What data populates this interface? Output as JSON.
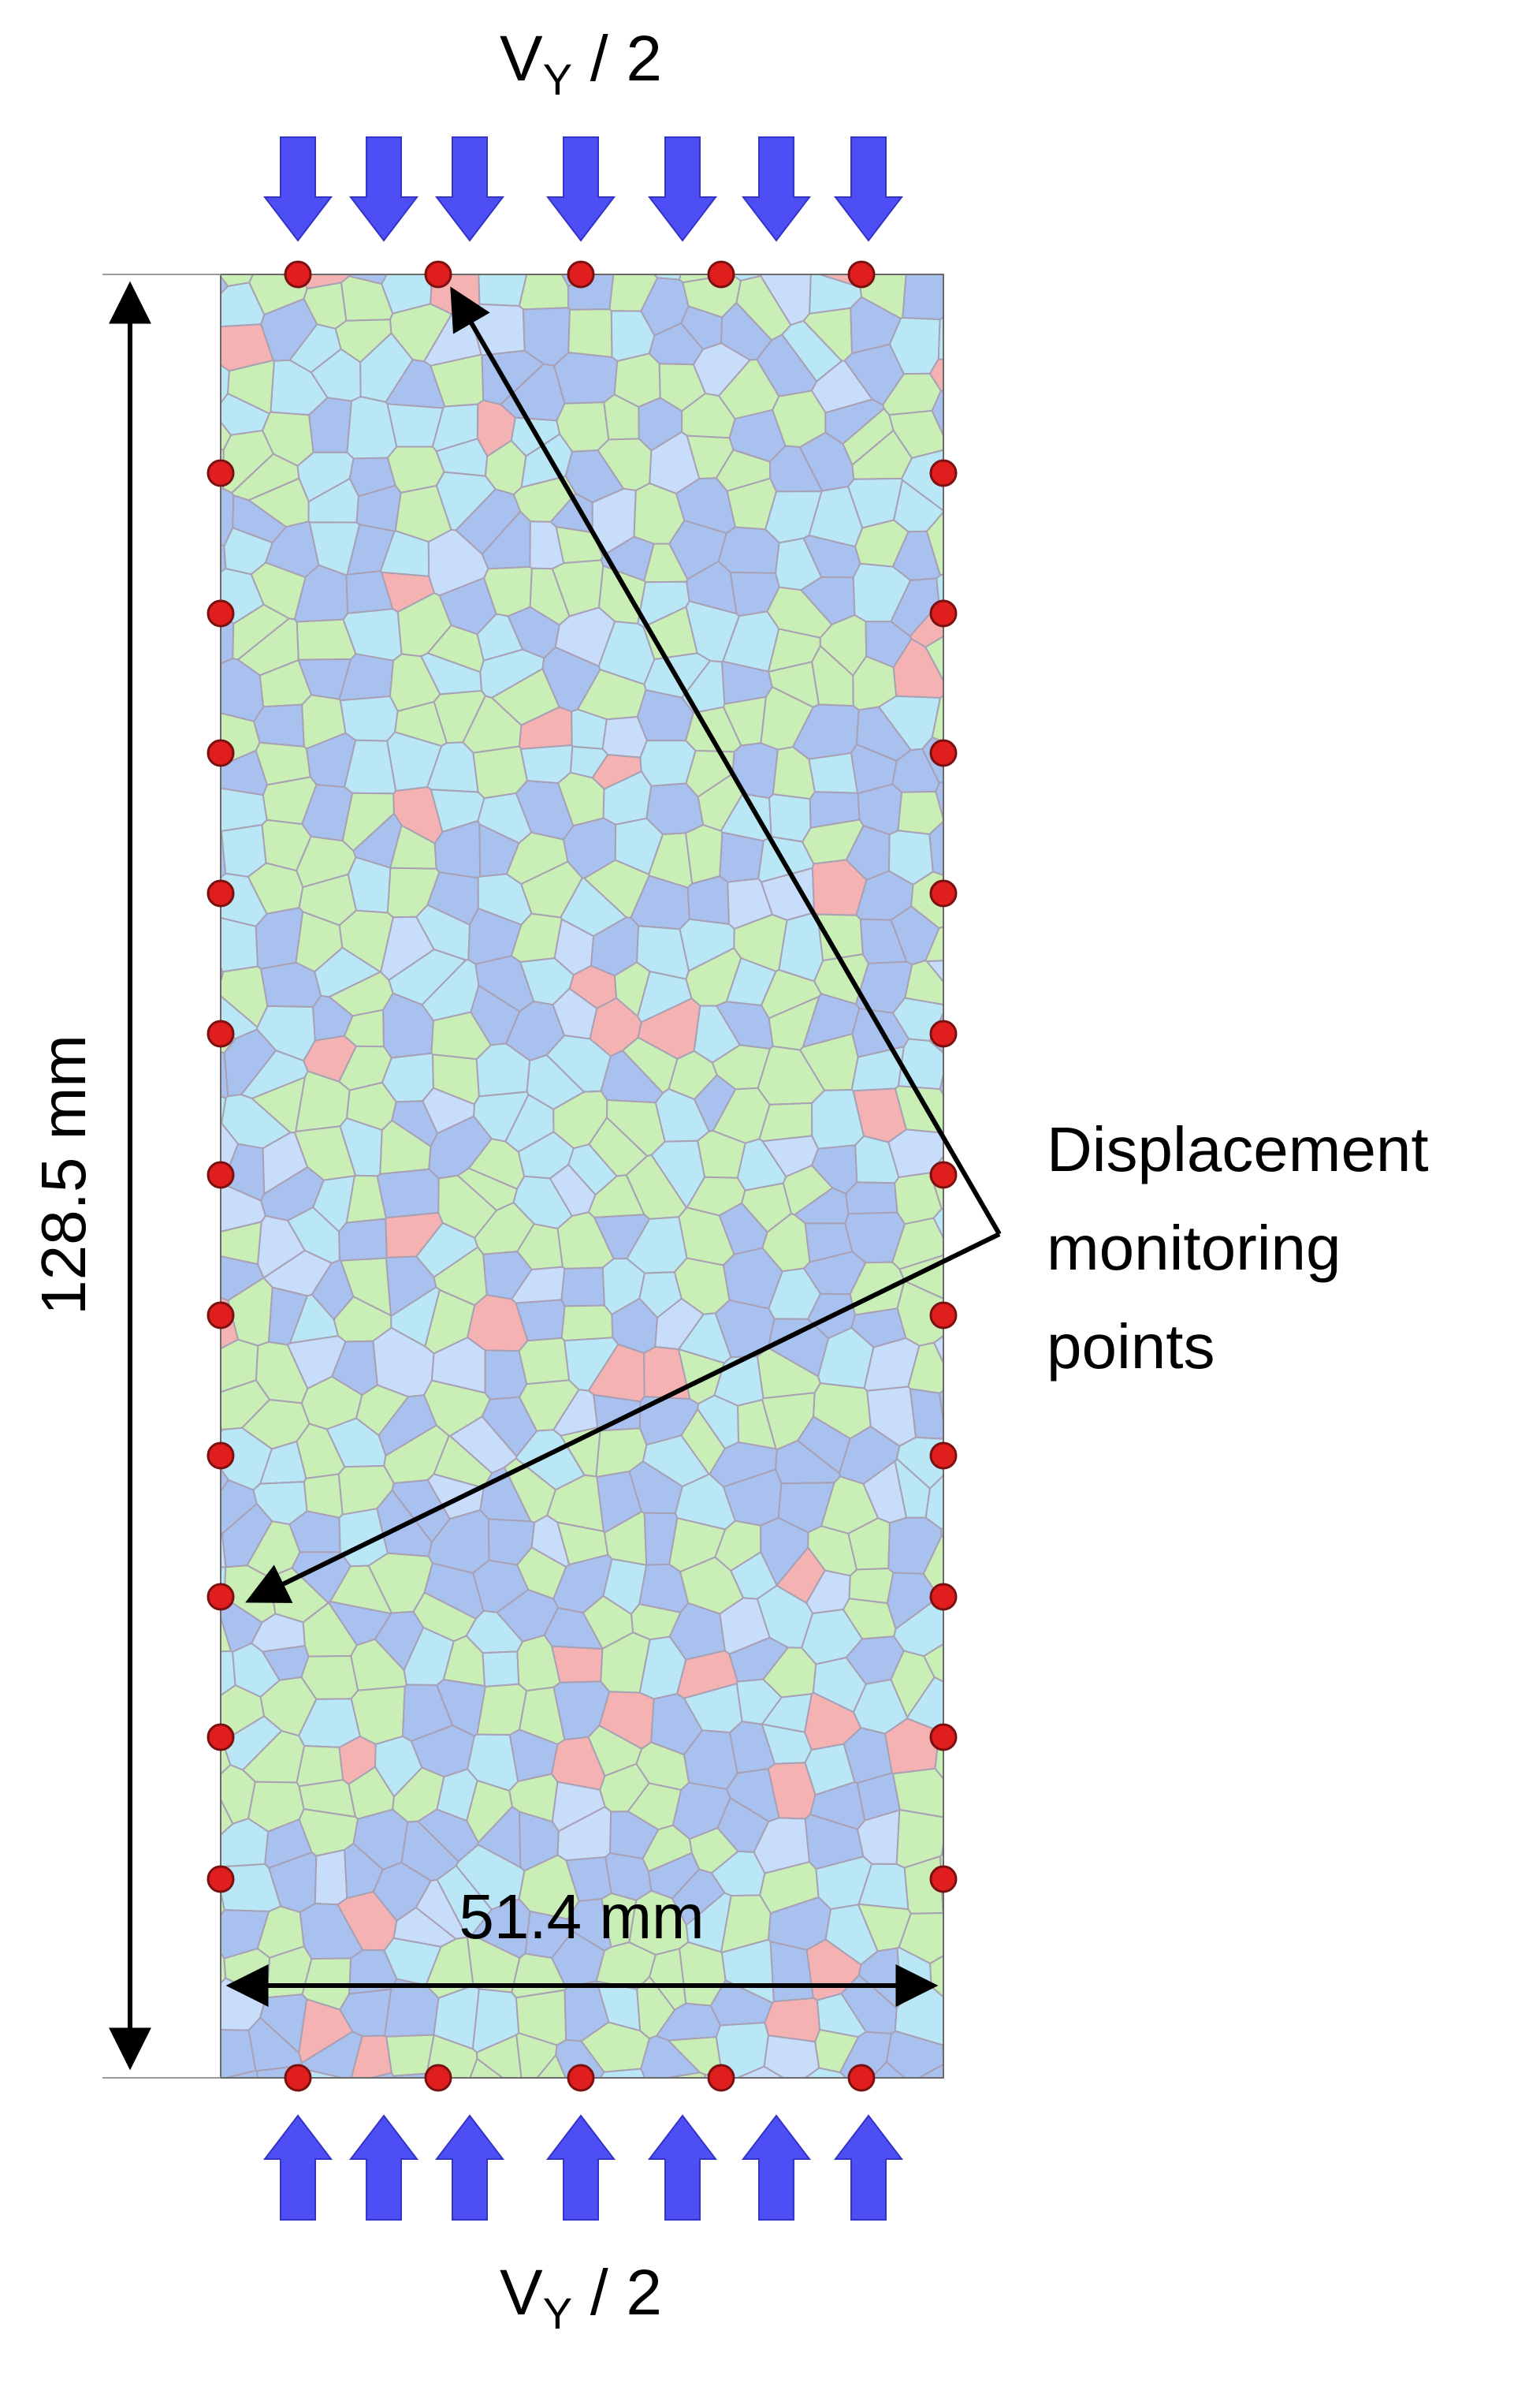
{
  "labels": {
    "top_load": {
      "base": "V",
      "sub": "Y",
      "rest": " / 2"
    },
    "bottom_load": {
      "base": "V",
      "sub": "Y",
      "rest": " / 2"
    },
    "height_dim": "128.5 mm",
    "width_dim": "51.4 mm",
    "callout": [
      "Displacement",
      "monitoring",
      "points"
    ]
  },
  "colors": {
    "load_arrow": "#4e4ef5",
    "monitor_point": "#e01e1e",
    "monitor_point_stroke": "#7a1010",
    "grain_outline": "#a8a0b4",
    "grain_palette": [
      "#a9c1ee",
      "#b9e7f6",
      "#c9eeb6",
      "#c8ddfa",
      "#f4b2b2"
    ]
  },
  "icons": {
    "load": "arrow-down-icon / arrow-up-icon",
    "monitor": "monitoring-point-dot"
  }
}
